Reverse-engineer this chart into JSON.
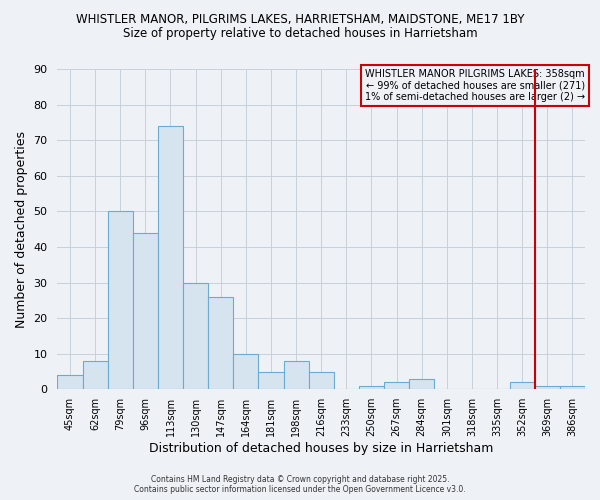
{
  "title1": "WHISTLER MANOR, PILGRIMS LAKES, HARRIETSHAM, MAIDSTONE, ME17 1BY",
  "title2": "Size of property relative to detached houses in Harrietsham",
  "xlabel": "Distribution of detached houses by size in Harrietsham",
  "ylabel": "Number of detached properties",
  "bar_labels": [
    "45sqm",
    "62sqm",
    "79sqm",
    "96sqm",
    "113sqm",
    "130sqm",
    "147sqm",
    "164sqm",
    "181sqm",
    "198sqm",
    "216sqm",
    "233sqm",
    "250sqm",
    "267sqm",
    "284sqm",
    "301sqm",
    "318sqm",
    "335sqm",
    "352sqm",
    "369sqm",
    "386sqm"
  ],
  "bar_values": [
    4,
    8,
    50,
    44,
    74,
    30,
    26,
    10,
    5,
    8,
    5,
    0,
    1,
    2,
    3,
    0,
    0,
    0,
    2,
    1,
    1
  ],
  "bar_color": "#d6e4f0",
  "bar_edge_color": "#6aabcf",
  "ylim": [
    0,
    90
  ],
  "yticks": [
    0,
    10,
    20,
    30,
    40,
    50,
    60,
    70,
    80,
    90
  ],
  "vline_x": 18.5,
  "vline_color": "#cc0000",
  "legend_title": "WHISTLER MANOR PILGRIMS LAKES: 358sqm",
  "legend_line1": "← 99% of detached houses are smaller (271)",
  "legend_line2": "1% of semi-detached houses are larger (2) →",
  "footer1": "Contains HM Land Registry data © Crown copyright and database right 2025.",
  "footer2": "Contains public sector information licensed under the Open Government Licence v3.0.",
  "bg_color": "#eef2f7",
  "grid_color": "#c8d0da"
}
